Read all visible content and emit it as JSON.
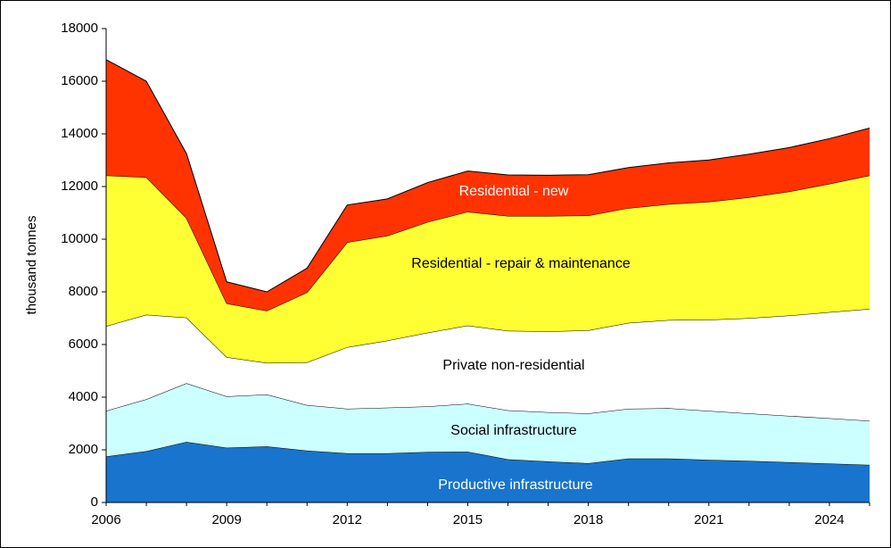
{
  "chart_data": {
    "type": "stacked_area",
    "ylabel": "thousand tonnes",
    "x": [
      2006,
      2007,
      2008,
      2009,
      2010,
      2011,
      2012,
      2013,
      2014,
      2015,
      2016,
      2017,
      2018,
      2019,
      2020,
      2021,
      2022,
      2023,
      2024,
      2025
    ],
    "xlim": [
      2006,
      2025
    ],
    "xticks": [
      2006,
      2009,
      2012,
      2015,
      2018,
      2021,
      2024
    ],
    "ylim": [
      0,
      18000
    ],
    "yticks": [
      0,
      2000,
      4000,
      6000,
      8000,
      10000,
      12000,
      14000,
      16000,
      18000
    ],
    "series": [
      {
        "name": "Productive infrastructure",
        "color": "#1874cd",
        "label_color": "#ffffff",
        "values": [
          1750,
          1950,
          2300,
          2080,
          2130,
          1970,
          1870,
          1870,
          1920,
          1930,
          1640,
          1560,
          1490,
          1670,
          1670,
          1620,
          1580,
          1530,
          1480,
          1430
        ]
      },
      {
        "name": "Social infrastructure",
        "color": "#ccffff",
        "label_color": "#000000",
        "values": [
          1730,
          1970,
          2230,
          1950,
          1970,
          1730,
          1690,
          1730,
          1730,
          1820,
          1860,
          1870,
          1890,
          1890,
          1910,
          1860,
          1800,
          1760,
          1720,
          1670
        ]
      },
      {
        "name": "Private non-residential",
        "color": "#ffffff",
        "label_color": "#000000",
        "values": [
          3220,
          3210,
          2490,
          1490,
          1200,
          1620,
          2340,
          2550,
          2800,
          2970,
          3020,
          3070,
          3160,
          3260,
          3350,
          3460,
          3620,
          3810,
          4030,
          4250
        ]
      },
      {
        "name": "Residential - repair & maintenance",
        "color": "#ffff33",
        "label_color": "#000000",
        "values": [
          5720,
          5220,
          3780,
          2040,
          1980,
          2660,
          3980,
          3980,
          4200,
          4320,
          4360,
          4380,
          4360,
          4360,
          4400,
          4480,
          4590,
          4710,
          4870,
          5070
        ]
      },
      {
        "name": "Residential - new",
        "color": "#ff3300",
        "label_color": "#ffffff",
        "values": [
          4400,
          3650,
          2450,
          820,
          720,
          920,
          1420,
          1400,
          1500,
          1550,
          1560,
          1550,
          1550,
          1540,
          1570,
          1590,
          1640,
          1670,
          1720,
          1800
        ]
      }
    ]
  }
}
